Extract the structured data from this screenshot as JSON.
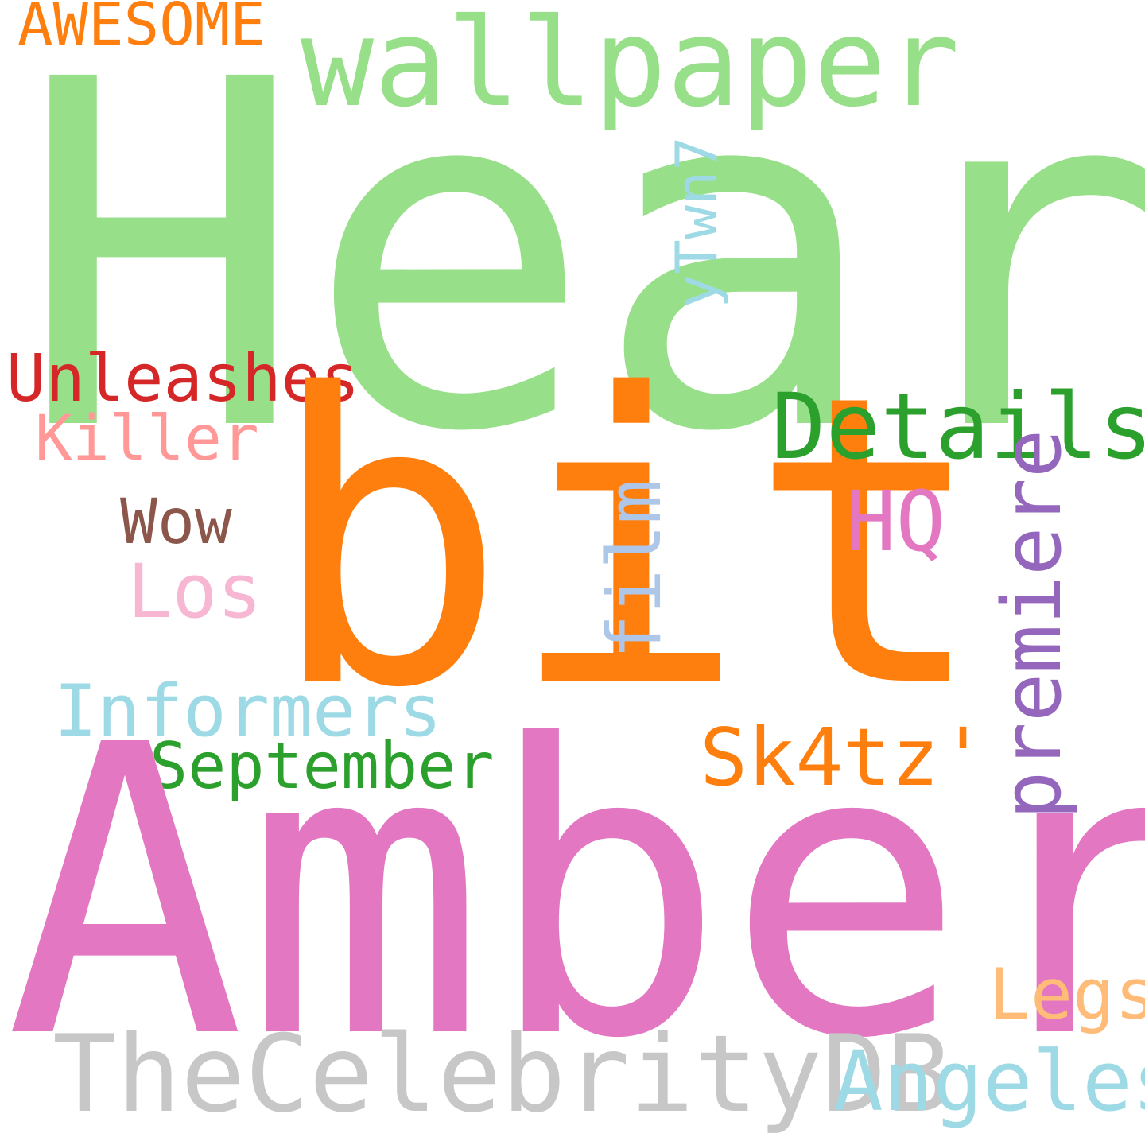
{
  "words": {
    "heard": {
      "text": "Heard",
      "color": "#98df8a"
    },
    "bit": {
      "text": "bit",
      "color": "#ff7f0e"
    },
    "amber": {
      "text": "Amber",
      "color": "#e377c2"
    },
    "wallpaper": {
      "text": "wallpaper",
      "color": "#98df8a"
    },
    "details": {
      "text": "Details",
      "color": "#2ca02c"
    },
    "thecelebritydb": {
      "text": "TheCelebrityDB",
      "color": "#c7c7c7"
    },
    "informers": {
      "text": "Informers",
      "color": "#9edae5"
    },
    "sk4tz": {
      "text": "Sk4tz'",
      "color": "#ff7f0e"
    },
    "september": {
      "text": "September",
      "color": "#2ca02c"
    },
    "angeles": {
      "text": "Angeles",
      "color": "#9edae5"
    },
    "legs": {
      "text": "Legs",
      "color": "#ffbb78"
    },
    "unleashes": {
      "text": "Unleashes",
      "color": "#d62728"
    },
    "killer": {
      "text": "Killer",
      "color": "#ff9896"
    },
    "wow": {
      "text": "Wow",
      "color": "#8c564b"
    },
    "los": {
      "text": "Los",
      "color": "#f7b6d2"
    },
    "hq": {
      "text": "HQ",
      "color": "#e377c2"
    },
    "awesome": {
      "text": "AWESOME",
      "color": "#ff7f0e"
    },
    "premiere": {
      "text": "premiere",
      "color": "#9467bd"
    },
    "film": {
      "text": "film",
      "color": "#aec7e8"
    },
    "ytwn7": {
      "text": "yTwn7",
      "color": "#9edae5"
    }
  }
}
